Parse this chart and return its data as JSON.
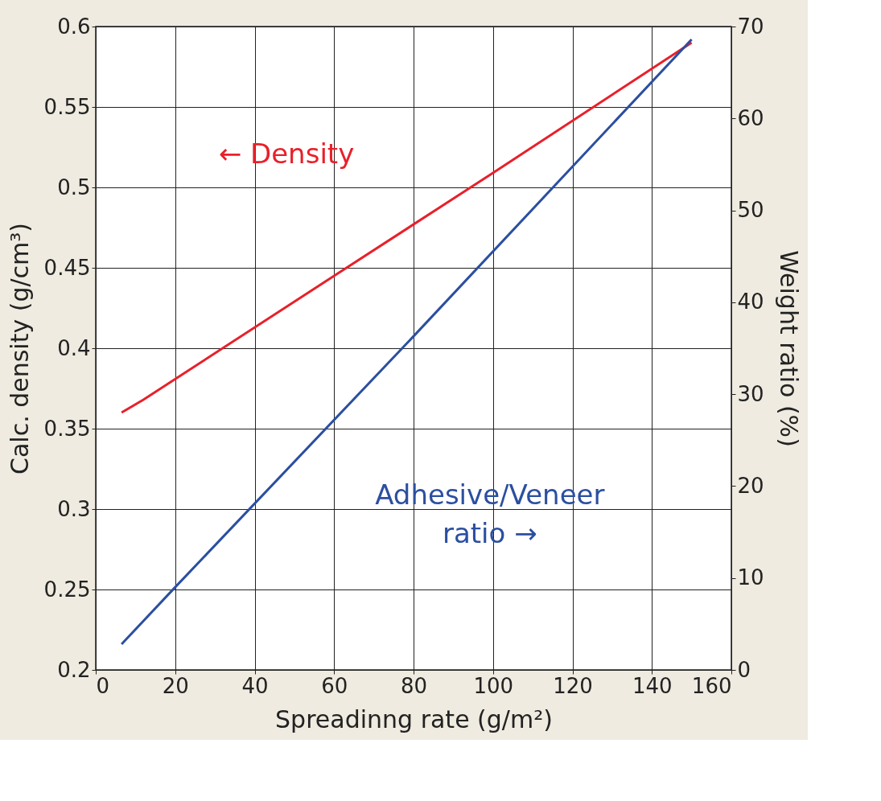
{
  "chart_data": {
    "type": "line",
    "xlabel": "Spreadinng rate (g/m²)",
    "ylabel": "Calc. density (g/cm³)",
    "y2label": "Weight ratio (%)",
    "xlim": [
      0,
      160
    ],
    "xticks": [
      0,
      20,
      40,
      60,
      80,
      100,
      120,
      140,
      160
    ],
    "ylim": [
      0.2,
      0.6
    ],
    "yticks": [
      0.2,
      0.25,
      0.3,
      0.35,
      0.4,
      0.45,
      0.5,
      0.55,
      0.6
    ],
    "y2lim": [
      0,
      70
    ],
    "y2ticks": [
      0,
      10,
      20,
      30,
      40,
      50,
      60,
      70
    ],
    "grid": true,
    "marker": "none",
    "line_style": "solid",
    "series": [
      {
        "color": "#e8202a",
        "x": [
          6.5,
          12,
          60,
          100,
          150
        ],
        "values": [
          0.36,
          0.368,
          0.445,
          0.509,
          0.59
        ]
      },
      {
        "color": "#2b4fa0",
        "axis": "y2",
        "x": [
          6.5,
          20,
          80,
          150
        ],
        "values": [
          2.8,
          9.0,
          36.3,
          68.6
        ]
      }
    ],
    "annotations": [
      "←  Density",
      "Adhesive/Veneer\nratio  →"
    ]
  }
}
